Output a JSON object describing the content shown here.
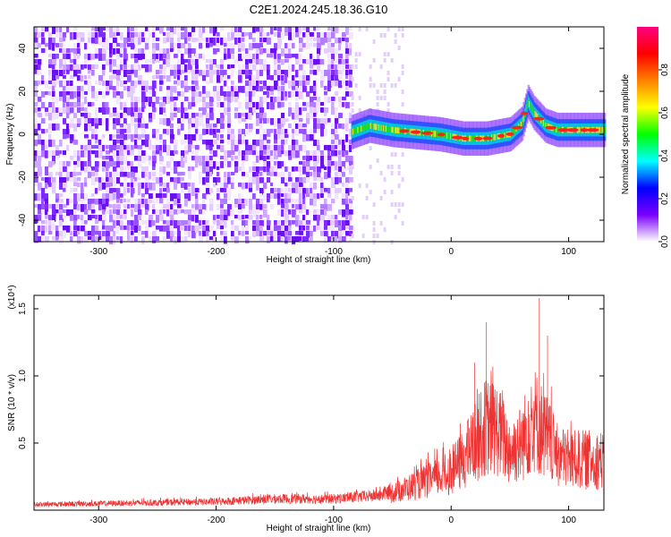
{
  "title": "C2E1.2024.245.18.36.G10",
  "chart_data": [
    {
      "type": "heatmap",
      "xlabel": "Height of straight line (km)",
      "ylabel": "Frequency (Hz)",
      "xlim": [
        -355,
        130
      ],
      "ylim": [
        -50,
        50
      ],
      "x_ticks": [
        -300,
        -200,
        -100,
        0,
        100
      ],
      "y_ticks": [
        -40,
        -20,
        0,
        20,
        40
      ],
      "noise_region_end_x": -85,
      "signal_ridge": {
        "x": [
          -85,
          -70,
          -50,
          -30,
          -10,
          10,
          30,
          50,
          60,
          65,
          70,
          80,
          90,
          110,
          130
        ],
        "y": [
          1,
          4,
          2,
          1,
          0,
          -2,
          -2,
          0,
          5,
          15,
          10,
          4,
          2,
          2,
          2
        ]
      },
      "colorbar": {
        "label": "Normalized spectral amplitude",
        "range": [
          0,
          1
        ],
        "ticks": [
          0.0,
          0.2,
          0.4,
          0.6,
          0.8
        ],
        "tick_labels": [
          "0.0",
          "0.2",
          "0.4",
          "0.6",
          "0.8"
        ],
        "colormap": [
          "#ffffff",
          "#7a00ff",
          "#0000ff",
          "#00ffff",
          "#00ff00",
          "#ffff00",
          "#ff8000",
          "#ff0000",
          "#ff0080"
        ]
      },
      "grid": false
    },
    {
      "type": "line",
      "xlabel": "Height of straight line (km)",
      "ylabel": "SNR (10 * v/v)",
      "y_scale_note": "(x10⁴)",
      "xlim": [
        -355,
        130
      ],
      "ylim": [
        0,
        1.6
      ],
      "x_ticks": [
        -300,
        -200,
        -100,
        0,
        100
      ],
      "y_ticks": [
        0.5,
        1.0,
        1.5
      ],
      "y_tick_labels": [
        "0.5",
        "1.0",
        "1.5"
      ],
      "series": [
        {
          "color": "#ee3333",
          "envelope": {
            "x": [
              -355,
              -300,
              -200,
              -150,
              -100,
              -60,
              -40,
              -20,
              0,
              10,
              20,
              30,
              40,
              50,
              60,
              70,
              80,
              90,
              100,
              130
            ],
            "y": [
              0.06,
              0.07,
              0.09,
              0.12,
              0.12,
              0.16,
              0.25,
              0.35,
              0.45,
              0.6,
              0.8,
              1.0,
              0.95,
              0.7,
              0.8,
              1.1,
              0.9,
              0.65,
              0.6,
              0.6
            ]
          },
          "spikes": [
            {
              "x": 30,
              "y": 1.4
            },
            {
              "x": 75,
              "y": 1.58
            },
            {
              "x": 82,
              "y": 1.3
            },
            {
              "x": 20,
              "y": 1.1
            }
          ]
        }
      ],
      "grid": false
    }
  ]
}
